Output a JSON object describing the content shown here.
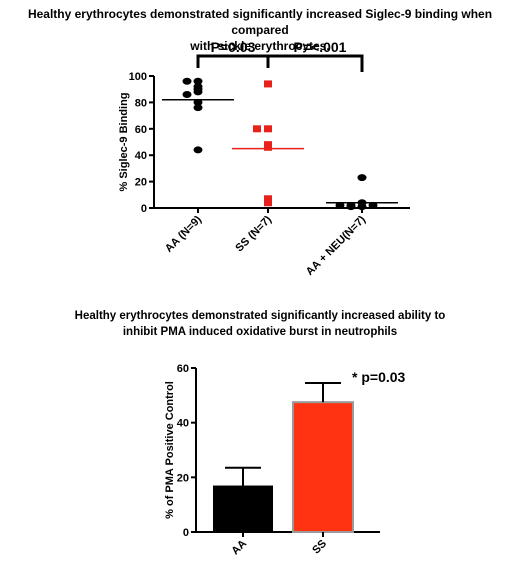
{
  "chart_data": [
    {
      "type": "scatter",
      "title_line1": "Healthy erythrocytes demonstrated significantly increased Siglec-9 binding when compared",
      "title_line2": "with sickle erythrocytes.",
      "xlabel": "",
      "ylabel": "% Siglec-9 Binding",
      "ylim": [
        0,
        100
      ],
      "yticks": [
        0,
        20,
        40,
        60,
        80,
        100
      ],
      "categories": [
        "AA (N=9)",
        "SS (N=7)",
        "AA + NEU(N=7)"
      ],
      "series": [
        {
          "category": "AA (N=9)",
          "color": "#000000",
          "marker": "circle",
          "values": [
            96,
            96,
            92,
            90,
            88,
            86,
            80,
            76,
            44
          ],
          "mean": 82
        },
        {
          "category": "SS (N=7)",
          "color": "#e8211c",
          "marker": "square",
          "values": [
            94,
            60,
            60,
            48,
            46,
            7,
            4
          ],
          "mean": 45
        },
        {
          "category": "AA + NEU(N=7)",
          "color": "#000000",
          "marker": "circle",
          "values": [
            23,
            4,
            2,
            2,
            2,
            1,
            1
          ],
          "mean": 4
        }
      ],
      "annotations": [
        {
          "text": "P=0.03",
          "from": 0,
          "to": 1
        },
        {
          "text": "P=<.001",
          "from": 1,
          "to": 2
        }
      ]
    },
    {
      "type": "bar",
      "title_line1": "Healthy erythrocytes demonstrated significantly increased ability to",
      "title_line2": "inhibit PMA induced oxidative burst in neutrophils",
      "xlabel": "",
      "ylabel": "% of PMA Positive Control",
      "ylim": [
        0,
        60
      ],
      "yticks": [
        0,
        20,
        40,
        60
      ],
      "categories": [
        "AA",
        "SS"
      ],
      "values": [
        17,
        47.5
      ],
      "errors": [
        6.5,
        7
      ],
      "colors": [
        "#000000",
        "#ff3311"
      ],
      "annotation": "* p=0.03"
    }
  ]
}
